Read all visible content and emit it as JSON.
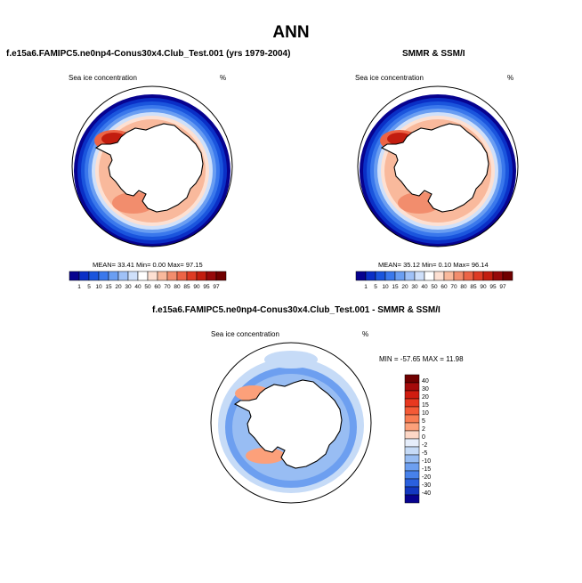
{
  "figure": {
    "title": "ANN"
  },
  "chart_data": [
    {
      "type": "heatmap",
      "projection": "south-polar-stereographic",
      "title": "f.e15a6.FAMIPC5.ne0np4-Conus30x4.Club_Test.001 (yrs 1979-2004)",
      "left_label": "Sea ice concentration",
      "right_label": "%",
      "stats": {
        "mean": "33.41",
        "min": "0.00",
        "max": "97.15"
      },
      "stats_text": "MEAN=  33.41  Min=   0.00  Max=  97.15",
      "colorbar_levels": [
        "1",
        "5",
        "10",
        "15",
        "20",
        "30",
        "40",
        "50",
        "60",
        "70",
        "80",
        "85",
        "90",
        "95",
        "97"
      ],
      "colorbar_colors": [
        "#07028f",
        "#0a2fc6",
        "#1a55dd",
        "#3a78ec",
        "#6a9ef2",
        "#9fc1f7",
        "#cfe0fa",
        "#ffffff",
        "#fde0d2",
        "#f9b99c",
        "#f28d6d",
        "#ec6446",
        "#de3b24",
        "#c21d0f",
        "#96090a",
        "#700000"
      ]
    },
    {
      "type": "heatmap",
      "projection": "south-polar-stereographic",
      "title": "SMMR & SSM/I",
      "left_label": "Sea ice concentration",
      "right_label": "%",
      "stats": {
        "mean": "35.12",
        "min": "0.10",
        "max": "96.14"
      },
      "stats_text": "MEAN=  35.12  Min=   0.10  Max=  96.14",
      "colorbar_levels": [
        "1",
        "5",
        "10",
        "15",
        "20",
        "30",
        "40",
        "50",
        "60",
        "70",
        "80",
        "85",
        "90",
        "95",
        "97"
      ],
      "colorbar_colors": [
        "#07028f",
        "#0a2fc6",
        "#1a55dd",
        "#3a78ec",
        "#6a9ef2",
        "#9fc1f7",
        "#cfe0fa",
        "#ffffff",
        "#fde0d2",
        "#f9b99c",
        "#f28d6d",
        "#ec6446",
        "#de3b24",
        "#c21d0f",
        "#96090a",
        "#700000"
      ]
    },
    {
      "type": "heatmap",
      "projection": "south-polar-stereographic",
      "title": "f.e15a6.FAMIPC5.ne0np4-Conus30x4.Club_Test.001 - SMMR & SSM/I",
      "left_label": "Sea ice concentration",
      "right_label": "%",
      "stats": {
        "min": "-57.65",
        "max": "11.98"
      },
      "stats_text": "MIN = -57.65 MAX =  11.98",
      "colorbar_levels": [
        "40",
        "30",
        "20",
        "15",
        "10",
        "5",
        "2",
        "0",
        "-2",
        "-5",
        "-10",
        "-15",
        "-20",
        "-30",
        "-40"
      ],
      "colorbar_colors": [
        "#700000",
        "#a50b0b",
        "#d01c10",
        "#e8381f",
        "#f45a36",
        "#f97c52",
        "#fca07a",
        "#fdd7c6",
        "#e6eefb",
        "#c6dbf7",
        "#98bdf3",
        "#6d9ff0",
        "#4781ea",
        "#2a60de",
        "#1338c0",
        "#07028f"
      ]
    }
  ]
}
